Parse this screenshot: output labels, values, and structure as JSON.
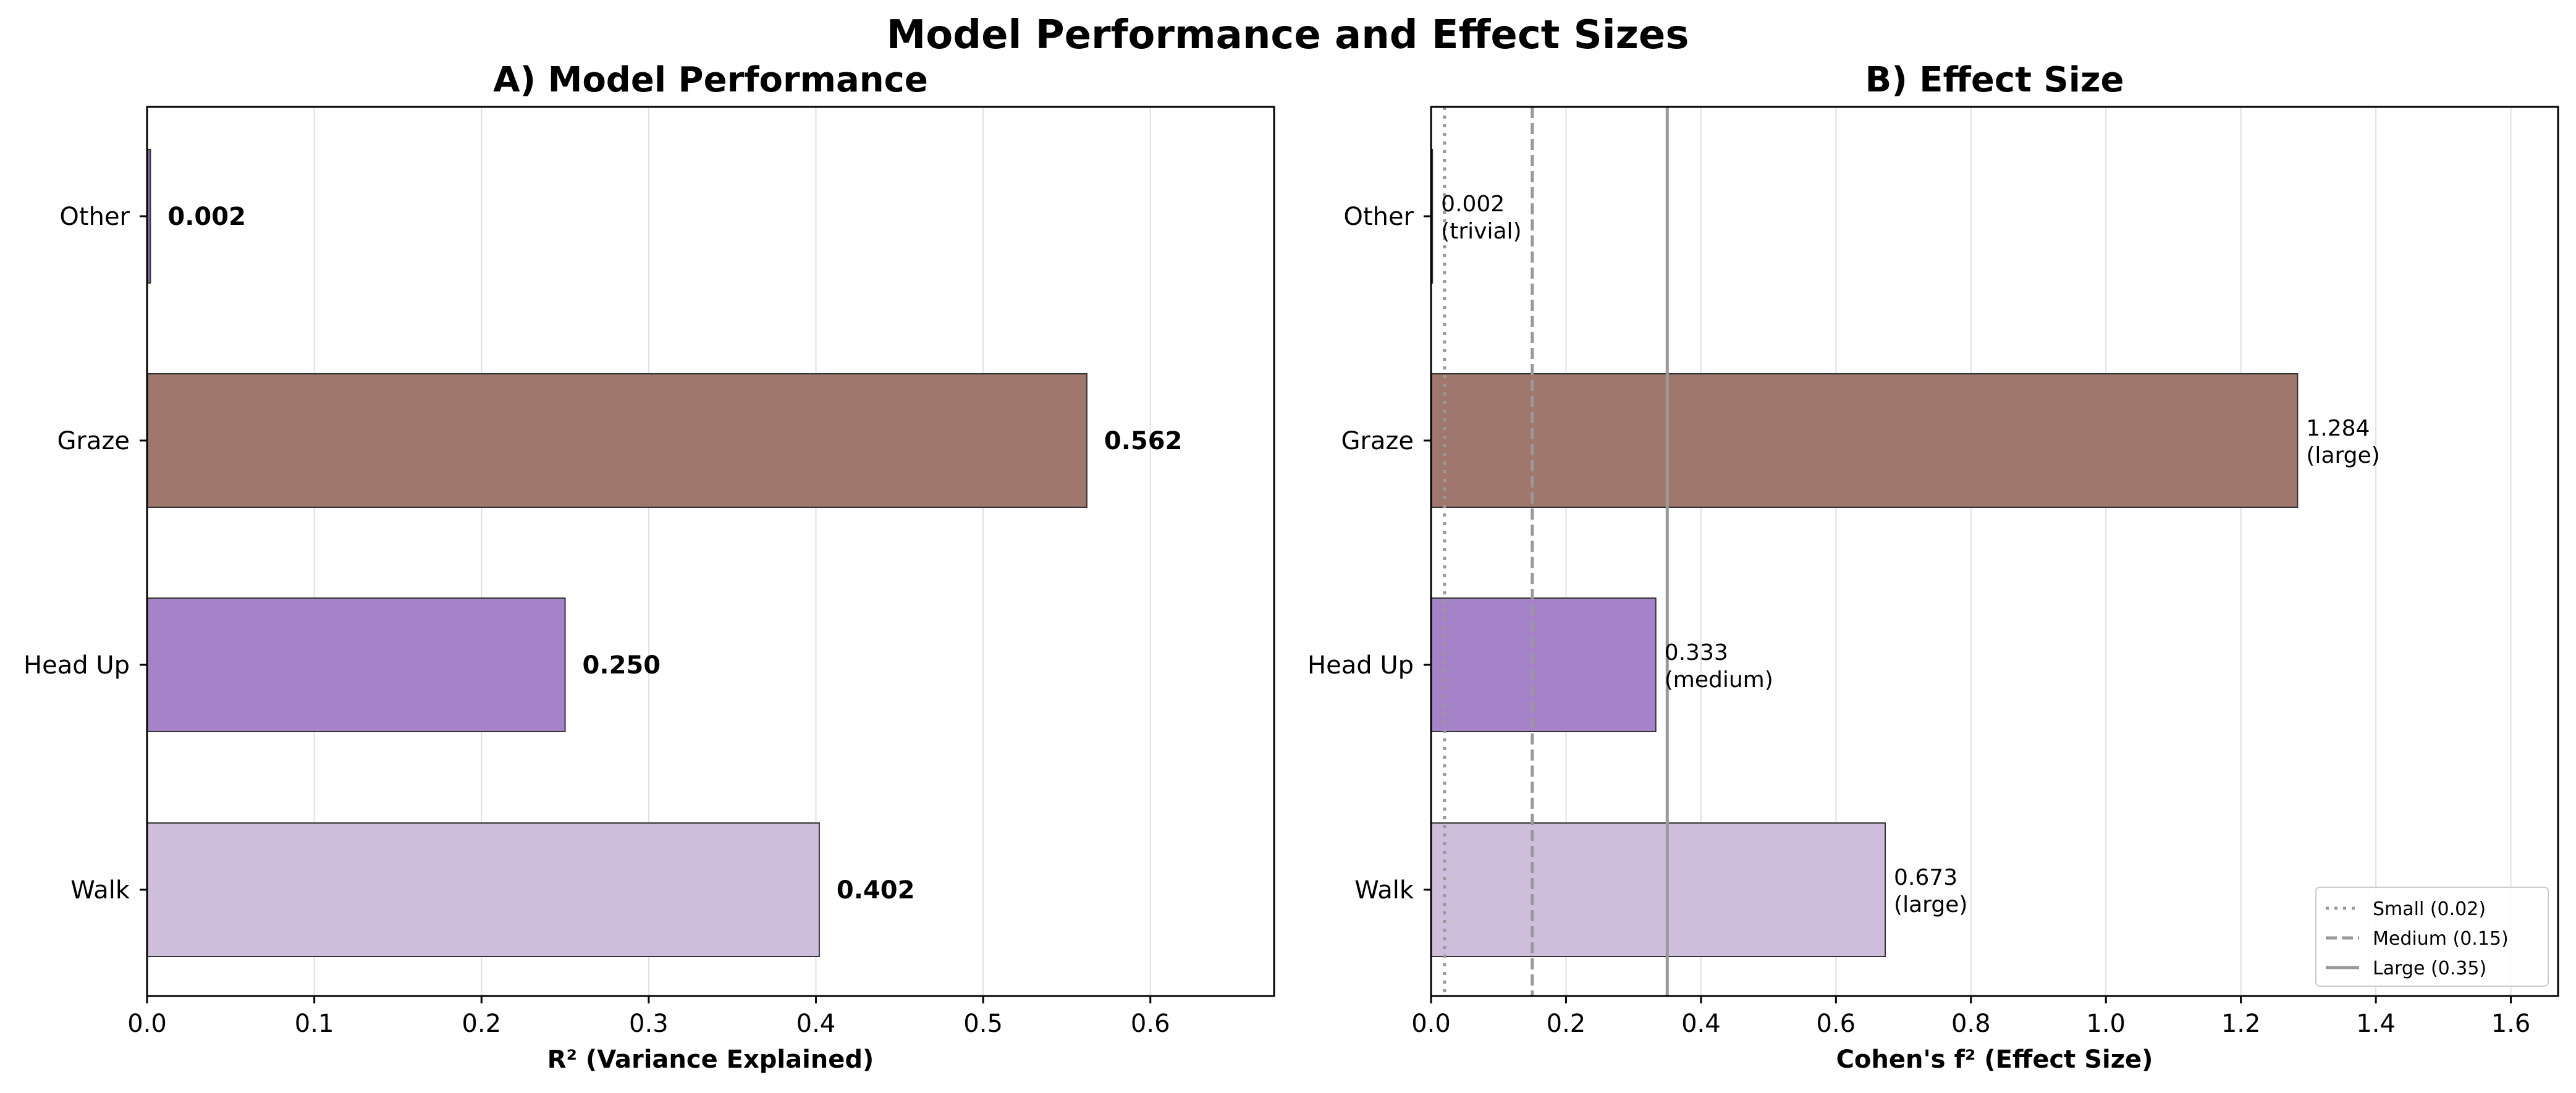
{
  "suptitle": "Model Performance and Effect Sizes",
  "colors": {
    "Other": "#8c6bb1",
    "Graze": "#a0776c",
    "Head Up": "#a683c8",
    "Walk": "#cfbddc",
    "edge": "#333333",
    "grid": "#e0e0e0",
    "ref_line": "#999999"
  },
  "chart_data": [
    {
      "id": "panel-a",
      "type": "bar",
      "orientation": "horizontal",
      "title": "A) Model Performance",
      "xlabel": "R² (Variance Explained)",
      "categories": [
        "Other",
        "Graze",
        "Head Up",
        "Walk"
      ],
      "values": [
        0.002,
        0.562,
        0.25,
        0.402
      ],
      "value_labels": [
        "0.002",
        "0.562",
        "0.250",
        "0.402"
      ],
      "xlim": [
        0,
        0.674
      ],
      "xticks": [
        0,
        0.1,
        0.2,
        0.3,
        0.4,
        0.5,
        0.6
      ],
      "xtick_labels": [
        "0.0",
        "0.1",
        "0.2",
        "0.3",
        "0.4",
        "0.5",
        "0.6"
      ],
      "grid": "x"
    },
    {
      "id": "panel-b",
      "type": "bar",
      "orientation": "horizontal",
      "title": "B) Effect Size",
      "xlabel": "Cohen's f² (Effect Size)",
      "categories": [
        "Other",
        "Graze",
        "Head Up",
        "Walk"
      ],
      "values": [
        0.002,
        1.284,
        0.333,
        0.673
      ],
      "value_labels": [
        [
          "0.002",
          "(trivial)"
        ],
        [
          "1.284",
          "(large)"
        ],
        [
          "0.333",
          "(medium)"
        ],
        [
          "0.673",
          "(large)"
        ]
      ],
      "xlim": [
        0,
        1.67
      ],
      "xticks": [
        0,
        0.2,
        0.4,
        0.6,
        0.8,
        1.0,
        1.2,
        1.4,
        1.6
      ],
      "xtick_labels": [
        "0.0",
        "0.2",
        "0.4",
        "0.6",
        "0.8",
        "1.0",
        "1.2",
        "1.4",
        "1.6"
      ],
      "grid": "x",
      "reference_lines": [
        {
          "label": "Small (0.02)",
          "value": 0.02,
          "style": "dotted"
        },
        {
          "label": "Medium (0.15)",
          "value": 0.15,
          "style": "dashed"
        },
        {
          "label": "Large (0.35)",
          "value": 0.35,
          "style": "solid"
        }
      ],
      "legend_position": "lower-right"
    }
  ]
}
